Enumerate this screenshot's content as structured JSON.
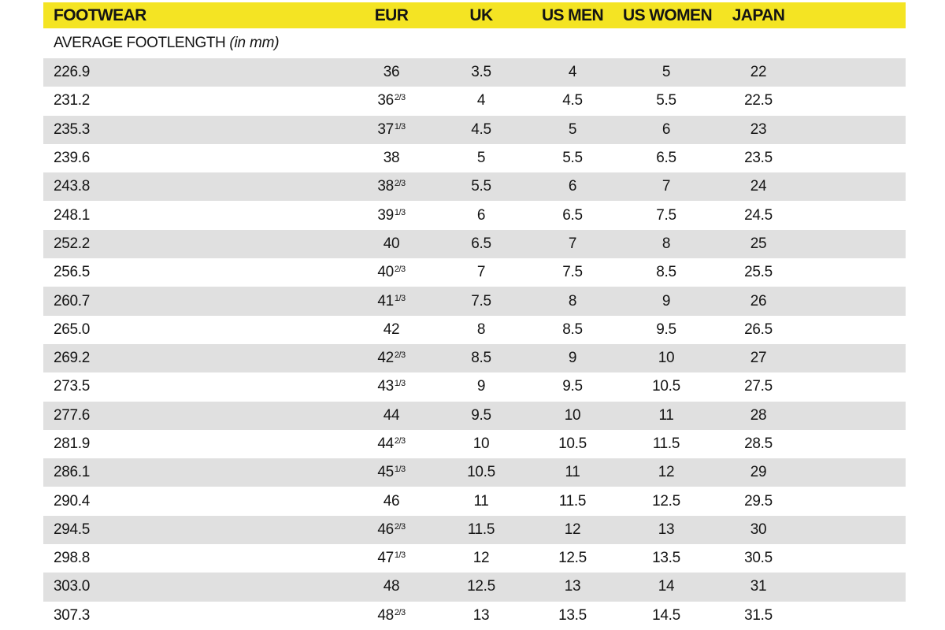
{
  "colors": {
    "header_bg": "#F4E423",
    "row_alt_bg": "#E0E0E0",
    "row_bg": "#FFFFFF",
    "text": "#141414"
  },
  "header": {
    "columns": [
      "FOOTWEAR",
      "EUR",
      "UK",
      "US MEN",
      "US WOMEN",
      "JAPAN"
    ]
  },
  "subheader": {
    "label": "AVERAGE FOOTLENGTH",
    "note": "(in mm)"
  },
  "chart_data": {
    "type": "table",
    "title": "FOOTWEAR size conversion",
    "columns": [
      "AVERAGE FOOTLENGTH (in mm)",
      "EUR",
      "UK",
      "US MEN",
      "US WOMEN",
      "JAPAN"
    ],
    "rows": [
      [
        "226.9",
        "36",
        "3.5",
        "4",
        "5",
        "22"
      ],
      [
        "231.2",
        "36 2/3",
        "4",
        "4.5",
        "5.5",
        "22.5"
      ],
      [
        "235.3",
        "37 1/3",
        "4.5",
        "5",
        "6",
        "23"
      ],
      [
        "239.6",
        "38",
        "5",
        "5.5",
        "6.5",
        "23.5"
      ],
      [
        "243.8",
        "38 2/3",
        "5.5",
        "6",
        "7",
        "24"
      ],
      [
        "248.1",
        "39 1/3",
        "6",
        "6.5",
        "7.5",
        "24.5"
      ],
      [
        "252.2",
        "40",
        "6.5",
        "7",
        "8",
        "25"
      ],
      [
        "256.5",
        "40 2/3",
        "7",
        "7.5",
        "8.5",
        "25.5"
      ],
      [
        "260.7",
        "41 1/3",
        "7.5",
        "8",
        "9",
        "26"
      ],
      [
        "265.0",
        "42",
        "8",
        "8.5",
        "9.5",
        "26.5"
      ],
      [
        "269.2",
        "42 2/3",
        "8.5",
        "9",
        "10",
        "27"
      ],
      [
        "273.5",
        "43 1/3",
        "9",
        "9.5",
        "10.5",
        "27.5"
      ],
      [
        "277.6",
        "44",
        "9.5",
        "10",
        "11",
        "28"
      ],
      [
        "281.9",
        "44 2/3",
        "10",
        "10.5",
        "11.5",
        "28.5"
      ],
      [
        "286.1",
        "45 1/3",
        "10.5",
        "11",
        "12",
        "29"
      ],
      [
        "290.4",
        "46",
        "11",
        "11.5",
        "12.5",
        "29.5"
      ],
      [
        "294.5",
        "46 2/3",
        "11.5",
        "12",
        "13",
        "30"
      ],
      [
        "298.8",
        "47 1/3",
        "12",
        "12.5",
        "13.5",
        "30.5"
      ],
      [
        "303.0",
        "48",
        "12.5",
        "13",
        "14",
        "31"
      ],
      [
        "307.3",
        "48 2/3",
        "13",
        "13.5",
        "14.5",
        "31.5"
      ]
    ],
    "layout": {
      "first_column_align": "left",
      "other_columns_align": "center",
      "alternating_rows": "odd rows shaded gray starting with first data row"
    }
  }
}
